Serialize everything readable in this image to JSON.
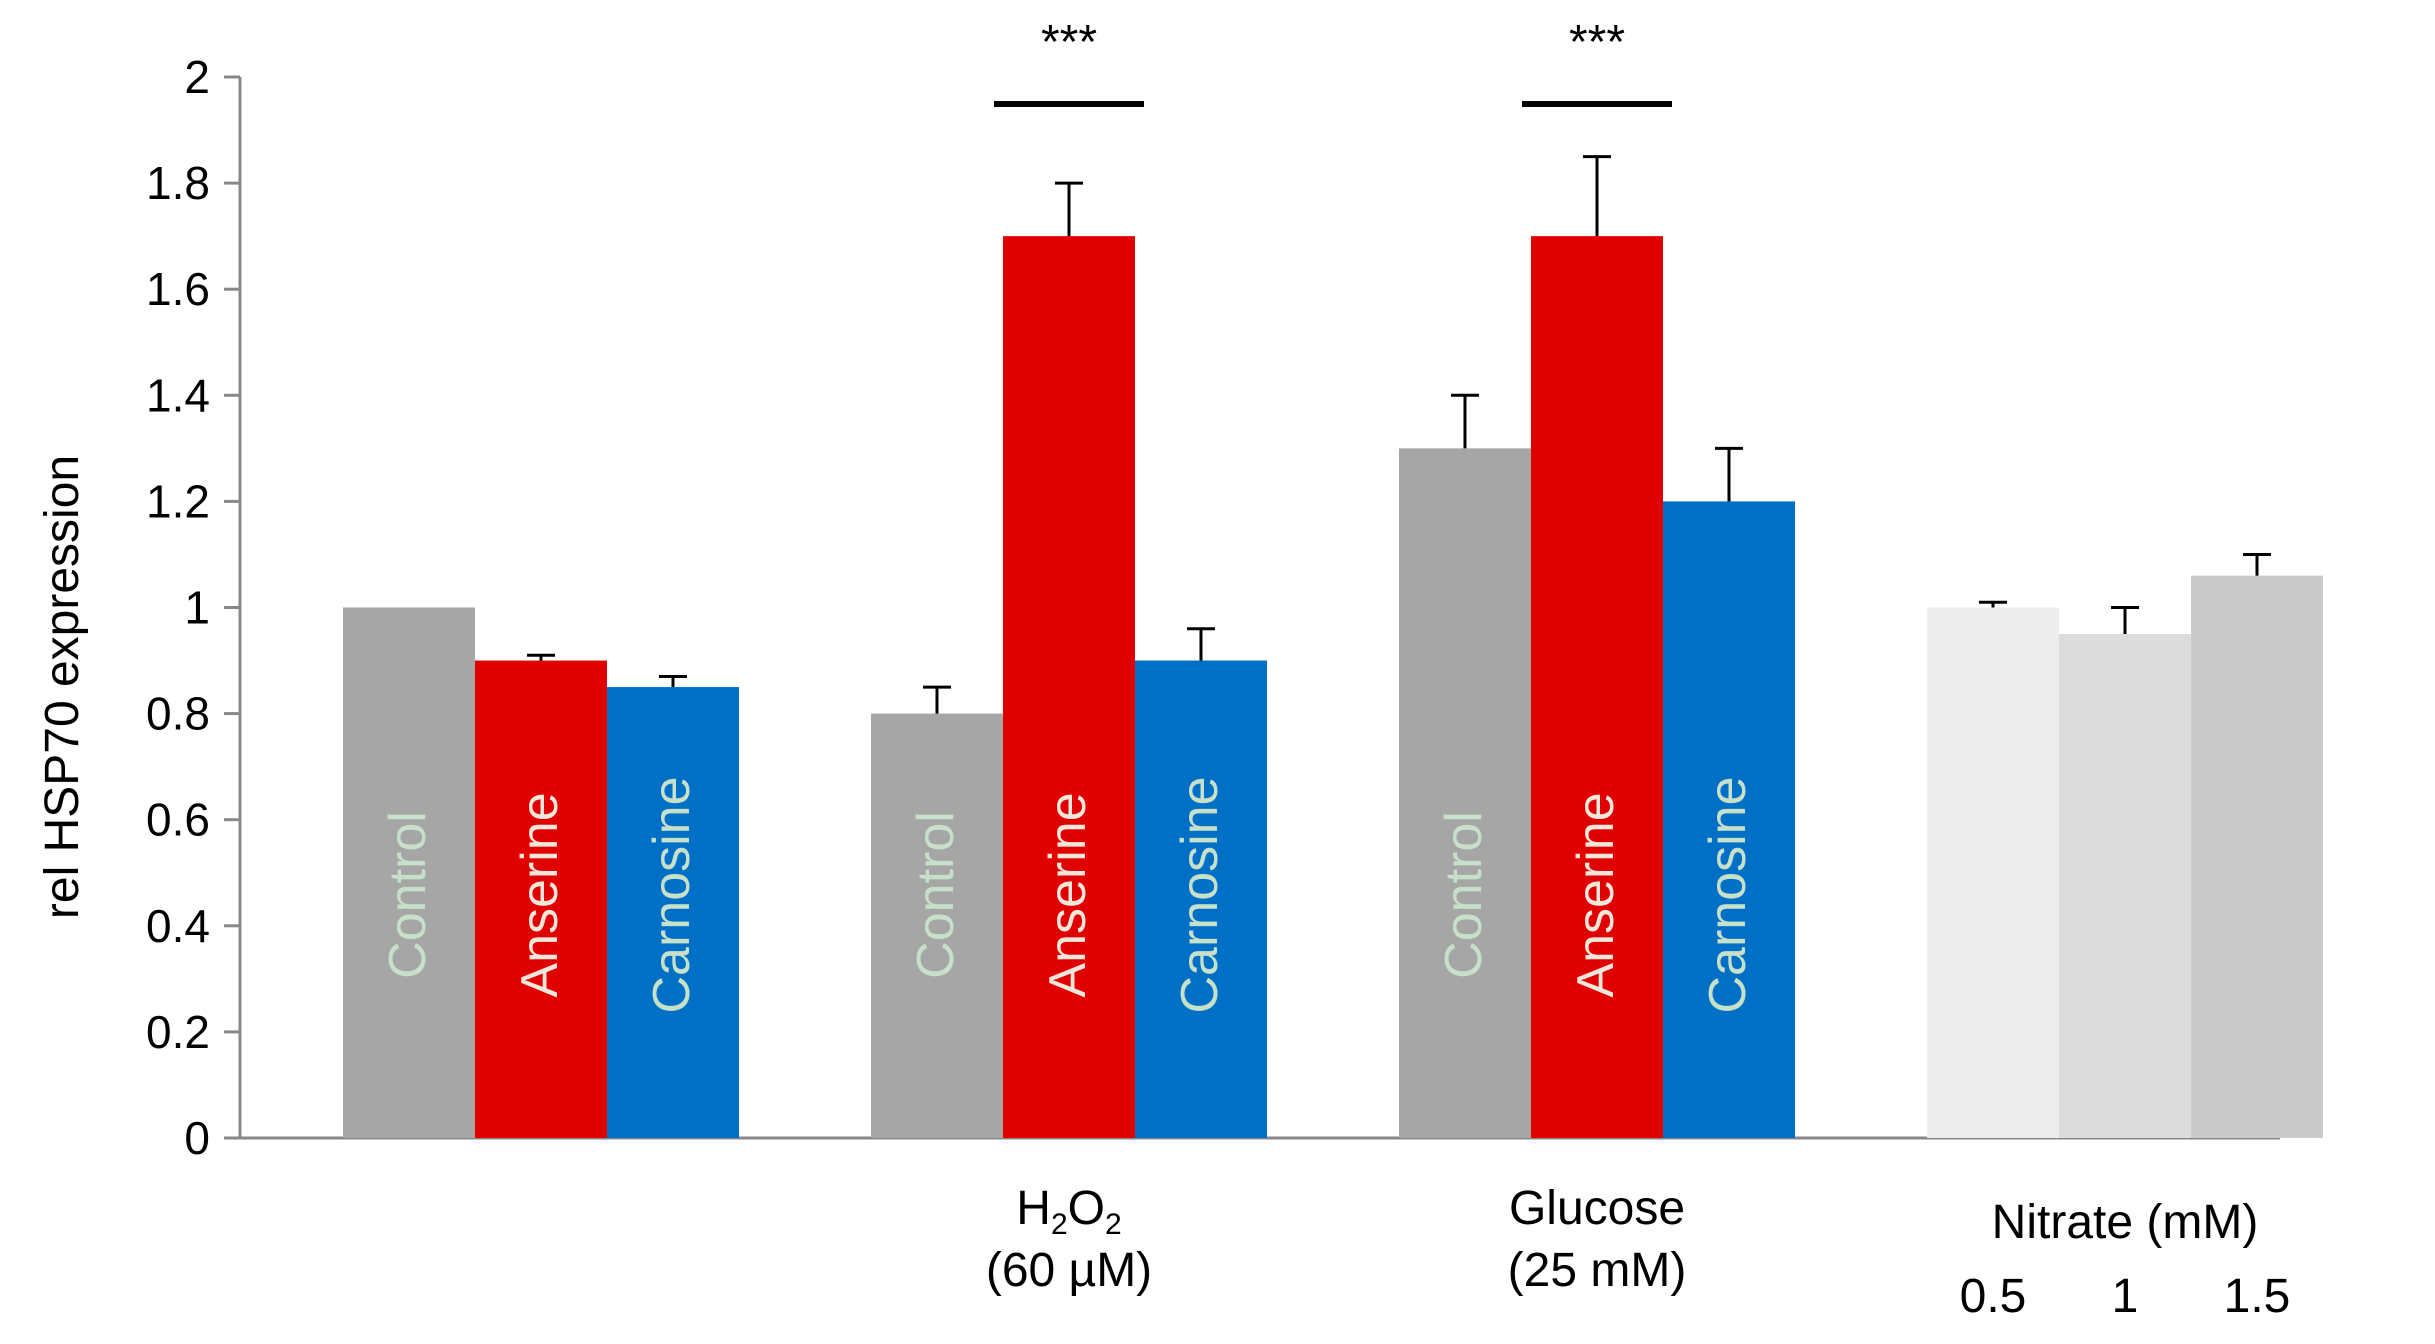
{
  "chart_data": {
    "type": "bar",
    "ylabel": "rel HSP70 expression",
    "ylim": [
      0,
      2
    ],
    "yticks": [
      "0",
      "0.2",
      "0.4",
      "0.6",
      "0.8",
      "1",
      "1.2",
      "1.4",
      "1.6",
      "1.8",
      "2"
    ],
    "grid": false,
    "groups": [
      {
        "id": "baseline",
        "label_lines": [],
        "bars": [
          {
            "name": "Control",
            "value": 1.0,
            "error": 0,
            "color": "#a6a6a6",
            "label_color": "#c6e0c9"
          },
          {
            "name": "Anserine",
            "value": 0.9,
            "error": 0.01,
            "color": "#e00000",
            "label_color": "#f5e6dc"
          },
          {
            "name": "Carnosine",
            "value": 0.85,
            "error": 0.02,
            "color": "#0070c6",
            "label_color": "#c6e0c9"
          }
        ]
      },
      {
        "id": "h2o2",
        "label_lines": [
          [
            "H",
            "2",
            "O",
            "2"
          ],
          "(60 µM)"
        ],
        "significance": "***",
        "bars": [
          {
            "name": "Control",
            "value": 0.8,
            "error": 0.05,
            "color": "#a6a6a6",
            "label_color": "#c6e0c9"
          },
          {
            "name": "Anserine",
            "value": 1.7,
            "error": 0.1,
            "color": "#e00000",
            "label_color": "#f5e6dc"
          },
          {
            "name": "Carnosine",
            "value": 0.9,
            "error": 0.06,
            "color": "#0070c6",
            "label_color": "#c6e0c9"
          }
        ]
      },
      {
        "id": "glucose",
        "label_lines": [
          "Glucose",
          "(25 mM)"
        ],
        "significance": "***",
        "bars": [
          {
            "name": "Control",
            "value": 1.3,
            "error": 0.1,
            "color": "#a6a6a6",
            "label_color": "#c6e0c9"
          },
          {
            "name": "Anserine",
            "value": 1.7,
            "error": 0.15,
            "color": "#e00000",
            "label_color": "#f5e6dc"
          },
          {
            "name": "Carnosine",
            "value": 1.2,
            "error": 0.1,
            "color": "#0070c6",
            "label_color": "#c6e0c9"
          }
        ]
      },
      {
        "id": "nitrate",
        "label_lines": [
          "Nitrate (mM)"
        ],
        "bars": [
          {
            "name": "",
            "tick": "0.5",
            "value": 1.0,
            "error": 0.01,
            "color": "#ededed"
          },
          {
            "name": "",
            "tick": "1",
            "value": 0.95,
            "error": 0.05,
            "color": "#dcdcdc"
          },
          {
            "name": "",
            "tick": "1.5",
            "value": 1.06,
            "error": 0.04,
            "color": "#cacaca"
          }
        ]
      }
    ]
  }
}
